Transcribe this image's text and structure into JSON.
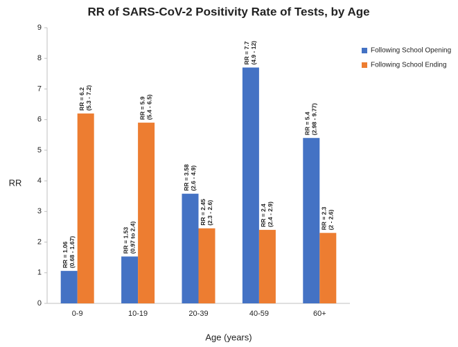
{
  "chart_data": {
    "type": "bar",
    "title": "RR of SARS-CoV-2 Positivity Rate of Tests, by Age",
    "x_label": "Age (years)",
    "y_label": "RR",
    "categories": [
      "0-9",
      "10-19",
      "20-39",
      "40-59",
      "60+"
    ],
    "series": [
      {
        "name": "Following School Opening",
        "color": "#4472c4",
        "values": [
          1.06,
          1.53,
          3.58,
          7.7,
          5.4
        ],
        "value_labels": [
          "RR = 1.06",
          "RR = 1.53",
          "RR = 3.58",
          "RR = 7.7",
          "RR = 5.4"
        ],
        "interval_labels": [
          "(0.68 - 1.67)",
          "(0.97 to 2.4)",
          "(2.6 - 4.9)",
          "(4.9 - 12)",
          "(2.98 - 9.77)"
        ]
      },
      {
        "name": "Following School Ending",
        "color": "#ed7d31",
        "values": [
          6.2,
          5.9,
          2.45,
          2.4,
          2.3
        ],
        "value_labels": [
          "RR = 6.2",
          "RR = 5.9",
          "RR = 2.45",
          "RR = 2.4",
          "RR = 2.3"
        ],
        "interval_labels": [
          "(5.3 - 7.2)",
          "(5.4 - 6.5)",
          "(2.3 - 2.6)",
          "(2.4 - 2.9)",
          "(2 - 2.6)"
        ]
      }
    ],
    "ylim": [
      0,
      9
    ],
    "yticks": [
      0,
      1,
      2,
      3,
      4,
      5,
      6,
      7,
      8,
      9
    ],
    "grid": false,
    "legend": "right"
  }
}
